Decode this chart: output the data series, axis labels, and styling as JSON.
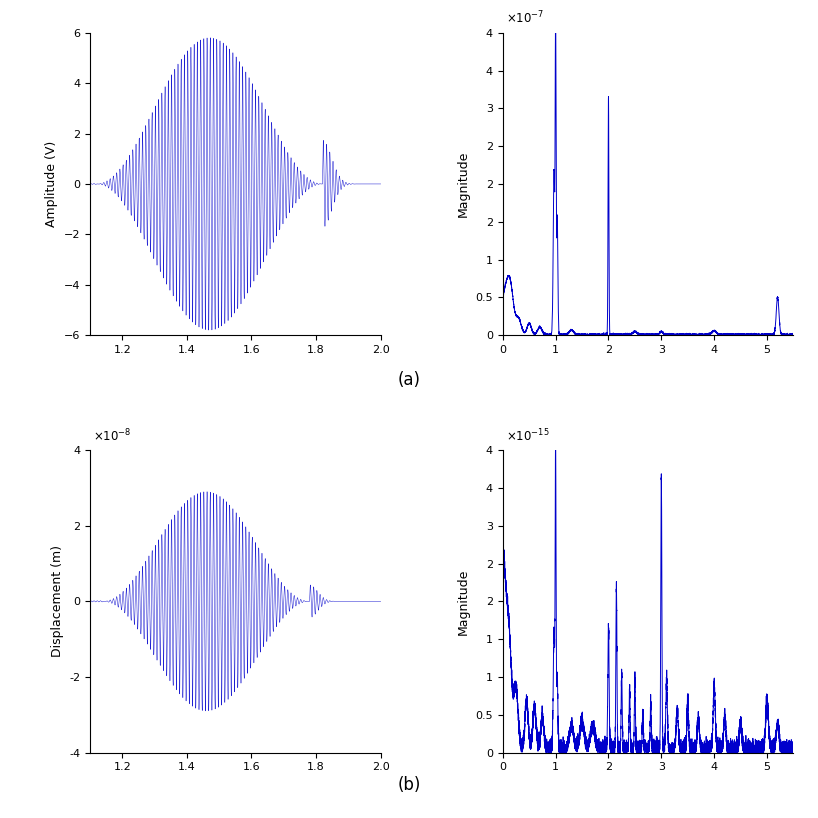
{
  "fig_width": 8.18,
  "fig_height": 8.18,
  "dpi": 100,
  "bg_color": "#ffffff",
  "line_color": "#0000cc",
  "top_left": {
    "ylabel": "Amplitude (V)",
    "xlim": [
      1.1,
      2.0
    ],
    "ylim": [
      -6,
      6
    ],
    "xticks": [
      1.2,
      1.4,
      1.6,
      1.8,
      2.0
    ],
    "yticks": [
      -6,
      -4,
      -2,
      0,
      2,
      4,
      6
    ],
    "signal_freq": 100,
    "burst_start": 1.12,
    "burst_peak": 1.47,
    "burst_end": 1.82,
    "amplitude": 5.8
  },
  "top_right": {
    "ylabel": "Magnitude",
    "xlim": [
      0,
      5.5
    ],
    "ylim": [
      0,
      4e-07
    ],
    "xticks": [
      0,
      1,
      2,
      3,
      4,
      5
    ],
    "peak1_freq": 1.0,
    "peak1_amp": 3.95e-07,
    "peak2_freq": 2.0,
    "peak2_amp": 3.15e-07,
    "peak3_freq": 5.2,
    "peak3_amp": 5e-08
  },
  "bottom_left": {
    "ylabel": "Displacement (m)",
    "xlim": [
      1.1,
      2.0
    ],
    "ylim": [
      -4e-08,
      4e-08
    ],
    "xticks": [
      1.2,
      1.4,
      1.6,
      1.8,
      2.0
    ],
    "yticks": [
      -4e-08,
      -2e-08,
      0,
      2e-08,
      4e-08
    ],
    "signal_freq": 100,
    "burst_start": 1.14,
    "burst_peak": 1.47,
    "burst_end": 1.78,
    "amplitude": 2.9e-08
  },
  "bottom_right": {
    "ylabel": "Magnitude",
    "xlim": [
      0,
      5.5
    ],
    "ylim": [
      0,
      4e-15
    ],
    "xticks": [
      0,
      1,
      2,
      3,
      4,
      5
    ]
  },
  "label_a": "(a)",
  "label_b": "(b)"
}
